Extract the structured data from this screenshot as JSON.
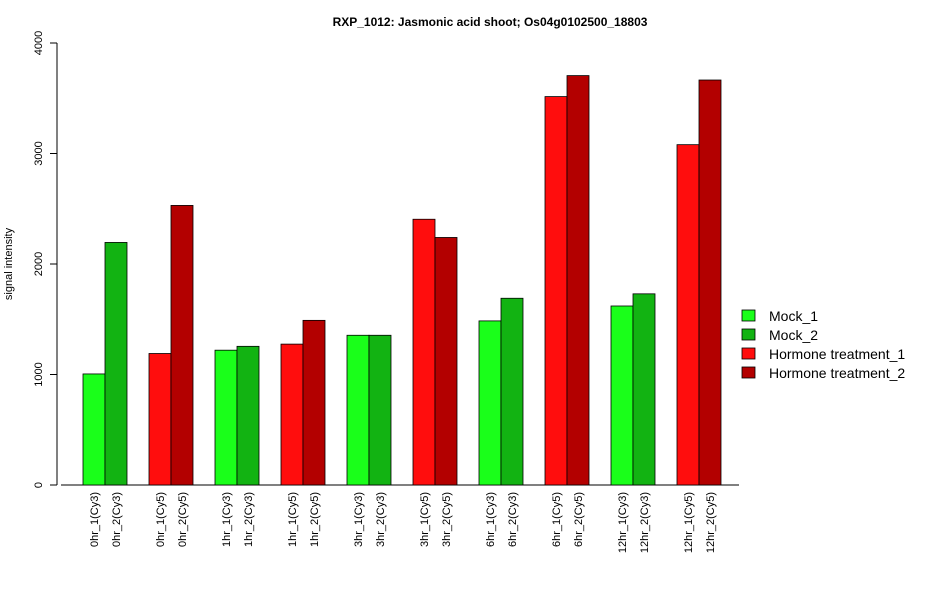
{
  "chart_data": {
    "type": "bar",
    "title": "RXP_1012: Jasmonic acid shoot; Os04g0102500_18803",
    "ylabel": "signal intensity",
    "ylim": [
      0,
      4000
    ],
    "yticks": [
      0,
      1000,
      2000,
      3000,
      4000
    ],
    "categories": [
      "0hr_1(Cy3)",
      "0hr_2(Cy3)",
      "0hr_1(Cy5)",
      "0hr_2(Cy5)",
      "1hr_1(Cy3)",
      "1hr_2(Cy3)",
      "1hr_1(Cy5)",
      "1hr_2(Cy5)",
      "3hr_1(Cy3)",
      "3hr_2(Cy3)",
      "3hr_1(Cy5)",
      "3hr_2(Cy5)",
      "6hr_1(Cy3)",
      "6hr_2(Cy3)",
      "6hr_1(Cy5)",
      "6hr_2(Cy5)",
      "12hr_1(Cy3)",
      "12hr_2(Cy3)",
      "12hr_1(Cy5)",
      "12hr_2(Cy5)"
    ],
    "values": [
      1005,
      2195,
      1190,
      2530,
      1220,
      1255,
      1275,
      1490,
      1355,
      1355,
      2405,
      2240,
      1485,
      1690,
      3515,
      3705,
      1620,
      1730,
      3080,
      3665
    ],
    "bar_series": [
      0,
      1,
      2,
      3,
      0,
      1,
      2,
      3,
      0,
      1,
      2,
      3,
      0,
      1,
      2,
      3,
      0,
      1,
      2,
      3
    ],
    "legend": [
      {
        "name": "Mock_1",
        "color": "#1aff1a"
      },
      {
        "name": "Mock_2",
        "color": "#12b312"
      },
      {
        "name": "Hormone treatment_1",
        "color": "#ff0d0d"
      },
      {
        "name": "Hormone treatment_2",
        "color": "#b30000"
      }
    ],
    "legend_position": "right",
    "grid": false
  }
}
